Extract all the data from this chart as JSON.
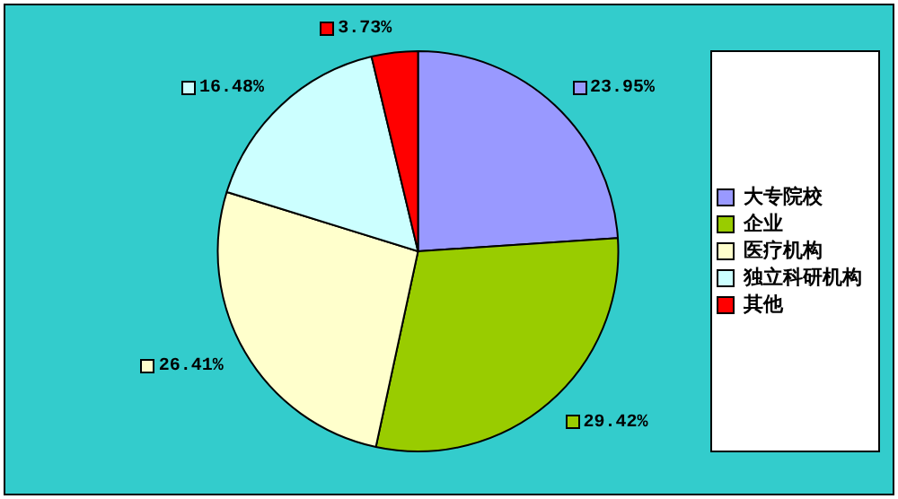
{
  "chart_data": {
    "type": "pie",
    "categories": [
      "大专院校",
      "企业",
      "医疗机构",
      "独立科研机构",
      "其他"
    ],
    "values": [
      23.95,
      29.42,
      26.41,
      16.48,
      3.73
    ],
    "colors": [
      "#9999ff",
      "#99cc00",
      "#ffffcc",
      "#ccffff",
      "#ff0000"
    ],
    "value_labels": [
      "23.95%",
      "29.42%",
      "26.41%",
      "16.48%",
      "3.73%"
    ],
    "legend": "right"
  }
}
